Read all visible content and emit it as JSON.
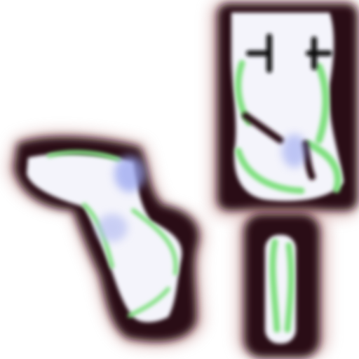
{
  "palette": {
    "background": "#ffffff",
    "outline_dark": "#2b0f12",
    "outline_halo": "#c48a8a",
    "fill_light": "#f4f4fb",
    "accent_green": "#7fe07f",
    "accent_blue": "#9aa6f0",
    "mark_black": "#111111"
  },
  "shapes": [
    {
      "name": "left-blob",
      "description_text": ""
    },
    {
      "name": "right-top-blob",
      "description_text": ""
    },
    {
      "name": "right-bottom-blob",
      "description_text": ""
    }
  ]
}
